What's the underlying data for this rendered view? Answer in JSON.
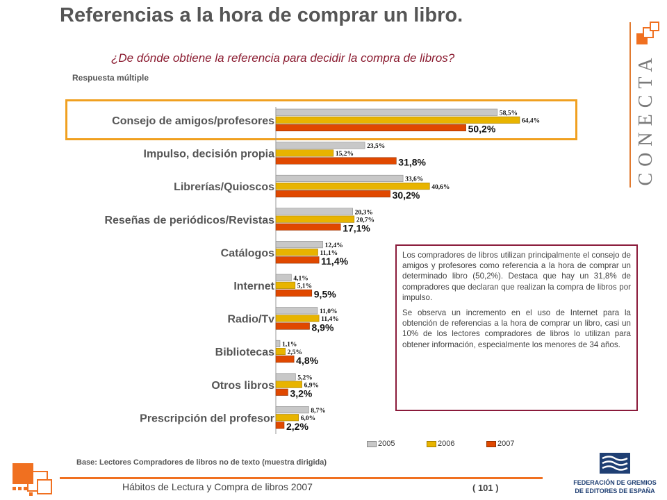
{
  "title": "Referencias a la hora de comprar un libro.",
  "subtitle": "¿De dónde obtiene la referencia para decidir la compra de libros?",
  "note": "Respuesta múltiple",
  "chart_data": {
    "type": "bar",
    "orientation": "horizontal",
    "categories": [
      "Consejo de amigos/profesores",
      "Impulso, decisión propia",
      "Librerías/Quioscos",
      "Reseñas de periódicos/Revistas",
      "Catálogos",
      "Internet",
      "Radio/Tv",
      "Bibliotecas",
      "Otros libros",
      "Prescripción del profesor"
    ],
    "series": [
      {
        "name": "2005",
        "color": "#c8c8c8",
        "values": [
          58.5,
          23.5,
          33.6,
          20.3,
          12.4,
          4.1,
          11.0,
          1.1,
          5.2,
          8.7
        ],
        "labels": [
          "58,5%",
          "23,5%",
          "33,6%",
          "20,3%",
          "12,4%",
          "4,1%",
          "11,0%",
          "1,1%",
          "5,2%",
          "8,7%"
        ]
      },
      {
        "name": "2006",
        "color": "#e8b400",
        "values": [
          64.4,
          15.2,
          40.6,
          20.7,
          11.1,
          5.1,
          11.4,
          2.5,
          6.9,
          6.0
        ],
        "labels": [
          "64,4%",
          "15,2%",
          "40,6%",
          "20,7%",
          "11,1%",
          "5,1%",
          "11,4%",
          "2,5%",
          "6,9%",
          "6,0%"
        ]
      },
      {
        "name": "2007",
        "color": "#e04800",
        "values": [
          50.2,
          31.8,
          30.2,
          17.1,
          11.4,
          9.5,
          8.9,
          4.8,
          3.2,
          2.2
        ],
        "labels": [
          "50,2%",
          "31,8%",
          "30,2%",
          "17,1%",
          "11,4%",
          "9,5%",
          "8,9%",
          "4,8%",
          "3,2%",
          "2,2%"
        ]
      }
    ],
    "highlighted_category": "Consejo de amigos/profesores",
    "legend": "bottom"
  },
  "commentary": {
    "p1": "Los compradores de libros utilizan principalmente el consejo de amigos y profesores como referencia a la hora de comprar un determinado libro (50,2%). Destaca que hay un 31,8% de compradores que declaran que realizan la compra de libros por impulso.",
    "p2": "Se observa un incremento en el uso de Internet para la obtención de referencias a la hora de comprar un libro, casi un 10% de los lectores compradores de libros lo utilizan para obtener información, especialmente los menores de 34 años."
  },
  "legend": {
    "s2005": "2005",
    "s2006": "2006",
    "s2007": "2007"
  },
  "base": "Base: Lectores Compradores de libros no de texto (muestra dirigida)",
  "footer": {
    "text": "Hábitos de Lectura y Compra de libros 2007",
    "page": "( 101 )"
  },
  "brand": {
    "conecta": "CONECTA",
    "federacion_l1": "FEDERACIÓN DE GREMIOS",
    "federacion_l2": "DE EDITORES DE ESPAÑA"
  },
  "colors": {
    "accent": "#f07020",
    "border_box": "#8a1a3a",
    "highlight": "#f0a020",
    "subtitle": "#8a1a2f"
  }
}
